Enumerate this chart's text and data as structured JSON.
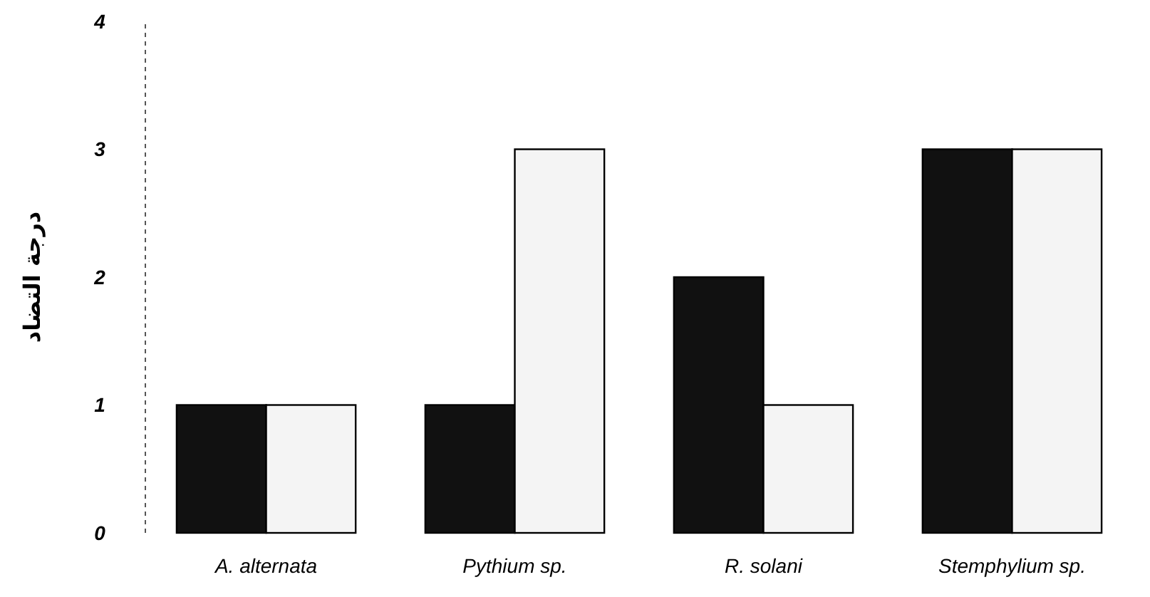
{
  "chart_data": {
    "type": "bar",
    "ylabel": "درجة التضاد",
    "categories": [
      "A. alternata",
      "Pythium sp.",
      "R. solani",
      "Stemphylium sp."
    ],
    "series": [
      {
        "color": "#111111",
        "values": [
          1,
          1,
          2,
          3
        ]
      },
      {
        "color": "#f4f4f4",
        "values": [
          1,
          3,
          1,
          3
        ]
      }
    ],
    "ylim": [
      0,
      4
    ],
    "yticks": [
      0,
      1,
      2,
      3,
      4
    ],
    "grid": false
  }
}
